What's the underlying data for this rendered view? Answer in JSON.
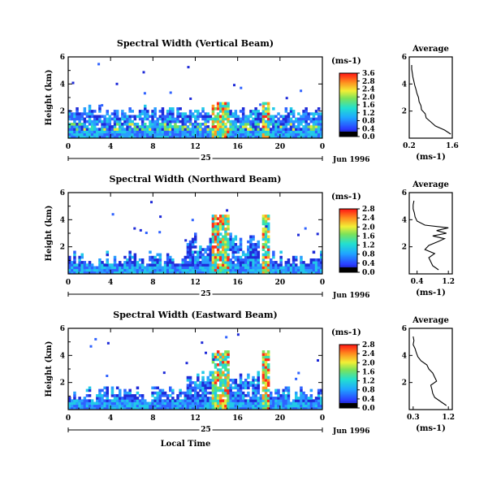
{
  "chart_data": [
    {
      "type": "heatmap",
      "title": "Spectral Width (Vertical Beam)",
      "ylabel": "Height (km)",
      "xticks": [
        "0",
        "4",
        "8",
        "12",
        "16",
        "20",
        "0"
      ],
      "ylim": [
        0,
        6
      ],
      "yticks": [
        "2",
        "4",
        "6"
      ],
      "xlim": [
        0,
        24
      ],
      "date_day": "25",
      "date_label": "Jun 1996",
      "colorbar": {
        "unit": "(ms-1)",
        "ticks": [
          "0.0",
          "0.4",
          "0.8",
          "1.2",
          "1.6",
          "2.0",
          "2.4",
          "2.8",
          "3.6"
        ]
      },
      "average_profile": {
        "title": "Average",
        "xlabel": "(ms-1)",
        "xticks": [
          "0.2",
          "1.6"
        ],
        "xlim": [
          0.2,
          1.6
        ],
        "yticks": [
          "2",
          "4",
          "6"
        ],
        "ylim": [
          0,
          6
        ],
        "heights": [
          0.3,
          0.6,
          0.9,
          1.2,
          1.5,
          1.8,
          2.1,
          2.4,
          2.7,
          3.0,
          3.3,
          3.6,
          3.9,
          4.2,
          4.5,
          4.8,
          5.1,
          5.4
        ],
        "values": [
          1.55,
          1.35,
          1.05,
          0.9,
          0.75,
          0.72,
          0.6,
          0.58,
          0.52,
          0.5,
          0.45,
          0.42,
          0.38,
          0.35,
          0.32,
          0.3,
          0.28,
          0.28
        ]
      }
    },
    {
      "type": "heatmap",
      "title": "Spectral Width (Northward Beam)",
      "ylabel": "Height (km)",
      "xticks": [
        "0",
        "4",
        "8",
        "12",
        "16",
        "20",
        "0"
      ],
      "ylim": [
        0,
        6
      ],
      "yticks": [
        "2",
        "4",
        "6"
      ],
      "xlim": [
        0,
        24
      ],
      "date_day": "25",
      "date_label": "Jun 1996",
      "colorbar": {
        "unit": "(ms-1)",
        "ticks": [
          "0.0",
          "0.4",
          "0.8",
          "1.2",
          "1.6",
          "2.0",
          "2.4",
          "2.8"
        ]
      },
      "average_profile": {
        "title": "Average",
        "xlabel": "(ms-1)",
        "xticks": [
          "0.4",
          "1.2"
        ],
        "xlim": [
          0.2,
          1.3
        ],
        "yticks": [
          "2",
          "4",
          "6"
        ],
        "ylim": [
          0,
          6
        ],
        "heights": [
          0.3,
          0.6,
          0.9,
          1.2,
          1.5,
          1.8,
          2.1,
          2.4,
          2.6,
          2.8,
          3.0,
          3.2,
          3.4,
          3.6,
          3.9,
          4.2,
          4.5,
          4.8,
          5.1,
          5.4
        ],
        "values": [
          0.95,
          0.8,
          0.75,
          0.7,
          0.85,
          0.6,
          0.7,
          0.95,
          1.1,
          0.8,
          1.15,
          0.9,
          1.2,
          0.6,
          0.4,
          0.35,
          0.33,
          0.3,
          0.3,
          0.32
        ]
      }
    },
    {
      "type": "heatmap",
      "title": "Spectral Width (Eastward Beam)",
      "ylabel": "Height (km)",
      "xlabel": "Local Time",
      "xticks": [
        "0",
        "4",
        "8",
        "12",
        "16",
        "20",
        "0"
      ],
      "ylim": [
        0,
        6
      ],
      "yticks": [
        "2",
        "4",
        "6"
      ],
      "xlim": [
        0,
        24
      ],
      "date_day": "25",
      "date_label": "Jun 1996",
      "colorbar": {
        "unit": "(ms-1)",
        "ticks": [
          "0.0",
          "0.4",
          "0.8",
          "1.2",
          "1.6",
          "2.0",
          "2.4",
          "2.8"
        ]
      },
      "average_profile": {
        "title": "Average",
        "xlabel": "(ms-1)",
        "xticks": [
          "0.3",
          "1.2"
        ],
        "xlim": [
          0.2,
          1.3
        ],
        "yticks": [
          "2",
          "4",
          "6"
        ],
        "ylim": [
          0,
          6
        ],
        "heights": [
          0.3,
          0.6,
          0.9,
          1.2,
          1.5,
          1.8,
          2.1,
          2.4,
          2.7,
          3.0,
          3.3,
          3.6,
          3.9,
          4.2,
          4.5,
          4.8,
          5.1,
          5.4
        ],
        "values": [
          1.15,
          1.0,
          0.85,
          0.8,
          0.78,
          0.75,
          0.9,
          0.85,
          0.8,
          0.7,
          0.65,
          0.5,
          0.42,
          0.38,
          0.35,
          0.3,
          0.32,
          0.3
        ]
      }
    }
  ]
}
